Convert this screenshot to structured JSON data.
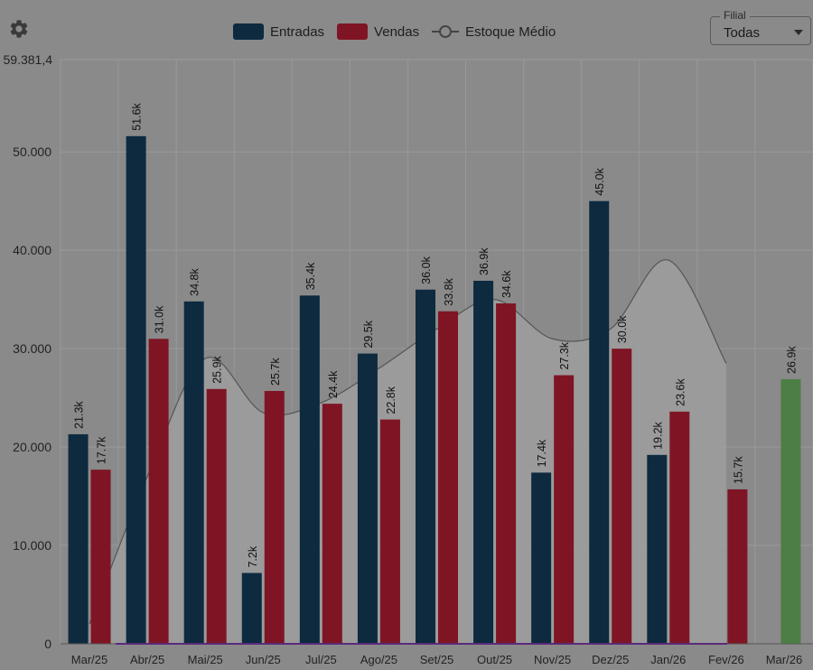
{
  "legend": {
    "entradas": "Entradas",
    "vendas": "Vendas",
    "estoque": "Estoque Médio"
  },
  "filter": {
    "label": "Filial",
    "value": "Todas"
  },
  "colors": {
    "entradas": "#0d2a3f",
    "vendas": "#7f1524",
    "forecast": "#4d7e45",
    "estoque_fill": "#9e9e9e",
    "estoque_line": "#555555"
  },
  "chart_data": {
    "type": "bar",
    "categories": [
      "Mar/25",
      "Abr/25",
      "Mai/25",
      "Jun/25",
      "Jul/25",
      "Ago/25",
      "Set/25",
      "Out/25",
      "Nov/25",
      "Dez/25",
      "Jan/26",
      "Fev/26",
      "Mar/26"
    ],
    "ylim": [
      0,
      59381.4
    ],
    "y_max_label": "59.381,4",
    "y_ticks": [
      {
        "value": 0,
        "label": "0"
      },
      {
        "value": 10000,
        "label": "10.000"
      },
      {
        "value": 20000,
        "label": "20.000"
      },
      {
        "value": 30000,
        "label": "30.000"
      },
      {
        "value": 40000,
        "label": "40.000"
      },
      {
        "value": 50000,
        "label": "50.000"
      }
    ],
    "series": [
      {
        "name": "Entradas",
        "values": [
          21300,
          51600,
          34800,
          7200,
          35400,
          29500,
          36000,
          36900,
          17400,
          45000,
          19200,
          null,
          null
        ],
        "labels": [
          "21.3k",
          "51.6k",
          "34.8k",
          "7.2k",
          "35.4k",
          "29.5k",
          "36.0k",
          "36.9k",
          "17.4k",
          "45.0k",
          "19.2k",
          "",
          ""
        ]
      },
      {
        "name": "Vendas",
        "values": [
          17700,
          31000,
          25900,
          25700,
          24400,
          22800,
          33800,
          34600,
          27300,
          30000,
          23600,
          15700,
          null
        ],
        "labels": [
          "17.7k",
          "31.0k",
          "25.9k",
          "25.7k",
          "24.4k",
          "22.8k",
          "33.8k",
          "34.6k",
          "27.3k",
          "30.0k",
          "23.6k",
          "15.7k",
          ""
        ]
      },
      {
        "name": "Estoque Médio",
        "type": "area",
        "values": [
          2000,
          17000,
          29000,
          23500,
          24500,
          28000,
          32000,
          35000,
          31000,
          32000,
          39000,
          28500,
          null
        ]
      }
    ],
    "forecast": {
      "category": "Mar/26",
      "value": 26900,
      "label": "26.9k"
    },
    "grid": true
  }
}
